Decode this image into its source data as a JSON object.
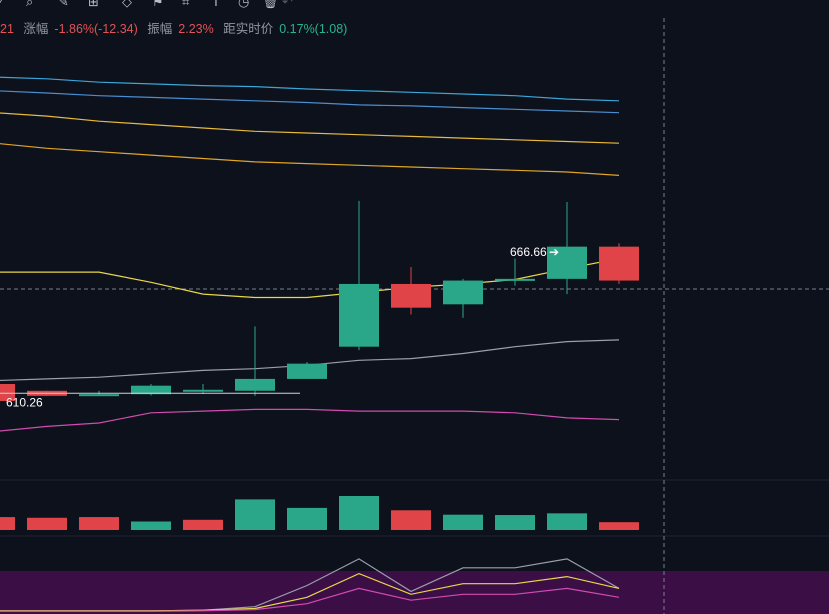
{
  "toolbar": {
    "icons": [
      "pencil-icon",
      "search-icon",
      "brush-icon",
      "ruler-icon",
      "pattern-icon",
      "flag-icon",
      "tag-icon",
      "text-icon",
      "clock-icon",
      "trash-icon",
      "undo-icon",
      "redo-icon"
    ]
  },
  "info": {
    "prefix": "21",
    "change_label": "涨幅",
    "change_value": "-1.86%(-12.34)",
    "amplitude_label": "振幅",
    "amplitude_value": "2.23%",
    "realtime_label": "距实时价",
    "realtime_value": "0.17%(1.08)"
  },
  "colors": {
    "background": "#0d111b",
    "up": "#2aa789",
    "down": "#e04448",
    "ma_yellow": "#e8d84a",
    "ma_gray": "#9aa0ad",
    "ma_pink": "#d24bb0",
    "ma_blue1": "#3aa6d8",
    "ma_blue2": "#4a8ed0",
    "ma_orange1": "#e8b93c",
    "ma_orange2": "#e0a528",
    "indicator_bg": "#3b0f45"
  },
  "chart_data": {
    "type": "candlestick",
    "price_range": [
      590,
      705
    ],
    "candles": [
      {
        "open": 613,
        "high": 613,
        "low": 608,
        "close": 608
      },
      {
        "open": 611,
        "high": 611,
        "low": 609.5,
        "close": 609.5
      },
      {
        "open": 610,
        "high": 611,
        "low": 609.8,
        "close": 610
      },
      {
        "open": 610,
        "high": 613,
        "low": 609.6,
        "close": 612.5
      },
      {
        "open": 611,
        "high": 613,
        "low": 610,
        "close": 611.3
      },
      {
        "open": 611,
        "high": 630,
        "low": 609.5,
        "close": 614.5
      },
      {
        "open": 614.5,
        "high": 619.5,
        "low": 614.5,
        "close": 619
      },
      {
        "open": 624,
        "high": 667,
        "low": 623,
        "close": 642.5
      },
      {
        "open": 642.5,
        "high": 647.5,
        "low": 633.5,
        "close": 635.5
      },
      {
        "open": 636.5,
        "high": 644,
        "low": 632.5,
        "close": 643.5
      },
      {
        "open": 643.5,
        "high": 650,
        "low": 642,
        "close": 644
      },
      {
        "open": 644,
        "high": 666.66,
        "low": 639.5,
        "close": 653.5
      },
      {
        "open": 653.5,
        "high": 654.5,
        "low": 642.5,
        "close": 643.5
      }
    ],
    "volume_range": [
      0,
      100
    ],
    "volumes": [
      38,
      36,
      38,
      25,
      30,
      90,
      65,
      100,
      58,
      45,
      44,
      49,
      23
    ],
    "volume_up": [
      false,
      false,
      false,
      true,
      false,
      true,
      true,
      true,
      false,
      true,
      true,
      true,
      false
    ],
    "ma_lines": [
      {
        "name": "ma-yellow",
        "values": [
          646,
          646,
          646,
          643,
          639.5,
          638.5,
          638.5,
          640,
          641.5,
          642.5,
          643.8,
          647,
          650
        ]
      },
      {
        "name": "ma-gray",
        "values": [
          614,
          614.5,
          615,
          616,
          617,
          617.5,
          618.5,
          620,
          620.5,
          622,
          624,
          625.5,
          626
        ]
      },
      {
        "name": "ma-pink",
        "values": [
          599,
          600.5,
          601.5,
          604.5,
          605,
          605.5,
          605.5,
          605,
          605,
          605,
          604.5,
          603,
          602.5
        ]
      },
      {
        "name": "ma-blue1",
        "values": [
          703.5,
          703,
          702,
          701.5,
          701,
          700.7,
          700,
          699.5,
          699,
          698.5,
          698,
          697,
          696.5
        ]
      },
      {
        "name": "ma-blue2",
        "values": [
          699.5,
          698.8,
          698,
          697.5,
          697,
          696.5,
          696,
          695.3,
          695,
          694.5,
          694,
          693.5,
          693
        ]
      },
      {
        "name": "ma-orange1",
        "values": [
          693,
          692,
          690.5,
          689.5,
          688.5,
          687.5,
          687,
          686.5,
          686,
          685.5,
          685,
          684.5,
          684
        ]
      },
      {
        "name": "ma-orange2",
        "values": [
          684,
          682.5,
          681.5,
          680.5,
          679.5,
          678.5,
          678,
          677.5,
          677,
          676.5,
          676,
          675.5,
          674.5
        ]
      }
    ],
    "indicator_range": [
      0,
      100
    ],
    "indicator_lines": [
      {
        "name": "ind-gray",
        "values": [
          2,
          2,
          2,
          2,
          3,
          9,
          45,
          90,
          35,
          75,
          75,
          90,
          40
        ]
      },
      {
        "name": "ind-yellow",
        "values": [
          2,
          2,
          2,
          2,
          3,
          6,
          25,
          65,
          30,
          48,
          48,
          60,
          40
        ]
      },
      {
        "name": "ind-pink",
        "values": [
          1,
          1,
          1,
          1,
          2,
          4,
          14,
          40,
          20,
          30,
          30,
          40,
          25
        ]
      }
    ],
    "current_price": 643,
    "high_label": "666.66",
    "low_label": "610.26",
    "low_value": 610.26
  }
}
